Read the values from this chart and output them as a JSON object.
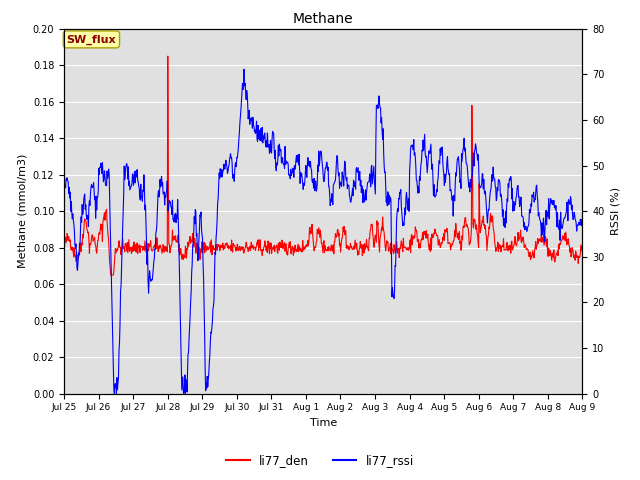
{
  "title": "Methane",
  "ylabel_left": "Methane (mmol/m3)",
  "ylabel_right": "RSSI (%)",
  "xlabel": "Time",
  "ylim_left": [
    0.0,
    0.2
  ],
  "ylim_right": [
    0,
    80
  ],
  "yticks_left": [
    0.0,
    0.02,
    0.04,
    0.06,
    0.08,
    0.1,
    0.12,
    0.14,
    0.16,
    0.18,
    0.2
  ],
  "yticks_right": [
    0,
    10,
    20,
    30,
    40,
    50,
    60,
    70,
    80
  ],
  "xtick_labels": [
    "Jul 25",
    "Jul 26",
    "Jul 27",
    "Jul 28",
    "Jul 29",
    "Jul 30",
    "Jul 31",
    "Aug 1",
    "Aug 2",
    "Aug 3",
    "Aug 4",
    "Aug 5",
    "Aug 6",
    "Aug 7",
    "Aug 8",
    "Aug 9"
  ],
  "legend_labels": [
    "li77_den",
    "li77_rssi"
  ],
  "legend_colors": [
    "red",
    "blue"
  ],
  "sw_flux_label": "SW_flux",
  "bg_color": "#e0e0e0",
  "line_color_den": "red",
  "line_color_rssi": "blue",
  "fig_width": 6.4,
  "fig_height": 4.8,
  "dpi": 100
}
